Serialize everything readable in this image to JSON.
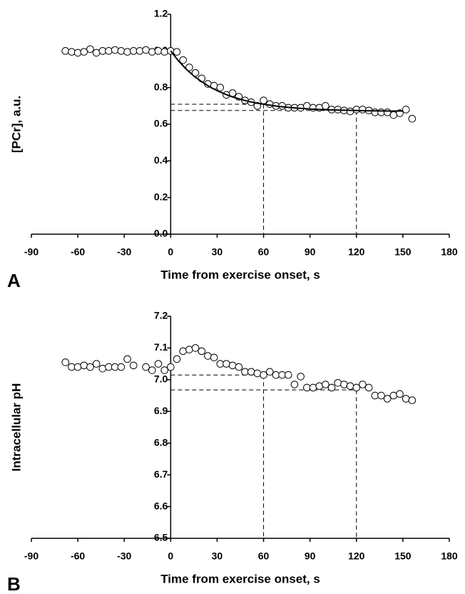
{
  "chart_data": [
    {
      "type": "scatter",
      "panel_label": "A",
      "x_label": "Time from exercise onset, s",
      "y_label": "[PCr], a.u.",
      "xlim": [
        -90,
        180
      ],
      "xticks": [
        -90,
        -60,
        -30,
        0,
        30,
        60,
        90,
        120,
        150,
        180
      ],
      "ylim": [
        0,
        1.2
      ],
      "yticks": [
        {
          "value": 0,
          "label": "0.0"
        },
        0.2,
        0.4,
        0.6,
        0.8,
        {
          "value": 1,
          "label": "1.0"
        },
        1.2
      ],
      "series": [
        {
          "type": "scatter",
          "color": "#000000",
          "x": [
            -68,
            -64,
            -60,
            -56,
            -52,
            -48,
            -44,
            -40,
            -36,
            -32,
            -28,
            -24,
            -20,
            -16,
            -12,
            -8,
            -4,
            0,
            4,
            8,
            12,
            16,
            20,
            24,
            28,
            32,
            36,
            40,
            44,
            48,
            52,
            56,
            60,
            64,
            68,
            72,
            76,
            80,
            84,
            88,
            92,
            96,
            100,
            104,
            108,
            112,
            116,
            120,
            124,
            128,
            132,
            136,
            140,
            144,
            148,
            152,
            156
          ],
          "values": [
            1.0,
            0.995,
            0.99,
            0.995,
            1.01,
            0.99,
            1.0,
            1.0,
            1.005,
            1.0,
            0.995,
            1.0,
            1.0,
            1.005,
            0.995,
            1.0,
            0.995,
            1.0,
            0.995,
            0.95,
            0.91,
            0.88,
            0.85,
            0.82,
            0.81,
            0.8,
            0.76,
            0.77,
            0.75,
            0.73,
            0.72,
            0.7,
            0.73,
            0.71,
            0.7,
            0.7,
            0.69,
            0.69,
            0.69,
            0.7,
            0.69,
            0.69,
            0.7,
            0.68,
            0.68,
            0.675,
            0.67,
            0.68,
            0.68,
            0.675,
            0.665,
            0.665,
            0.665,
            0.65,
            0.66,
            0.68,
            0.63
          ]
        },
        {
          "type": "line",
          "color": "#000000",
          "x": [
            0,
            5,
            10,
            15,
            20,
            25,
            30,
            35,
            40,
            45,
            50,
            55,
            60,
            70,
            80,
            90,
            100,
            110,
            120,
            130,
            140,
            150
          ],
          "values": [
            1.0,
            0.946,
            0.901,
            0.863,
            0.832,
            0.805,
            0.783,
            0.765,
            0.749,
            0.736,
            0.725,
            0.716,
            0.709,
            0.697,
            0.689,
            0.683,
            0.679,
            0.677,
            0.675,
            0.673,
            0.672,
            0.672
          ]
        }
      ],
      "reference_lines": [
        {
          "x": 60,
          "y": 0.709
        },
        {
          "x": 120,
          "y": 0.675
        }
      ]
    },
    {
      "type": "scatter",
      "panel_label": "B",
      "x_label": "Time from exercise onset, s",
      "y_label": "Intracellular pH",
      "xlim": [
        -90,
        180
      ],
      "xticks": [
        -90,
        -60,
        -30,
        0,
        30,
        60,
        90,
        120,
        150,
        180
      ],
      "ylim": [
        6.5,
        7.2
      ],
      "yticks": [
        6.5,
        6.6,
        6.7,
        6.8,
        6.9,
        {
          "value": 7,
          "label": "7.0"
        },
        7.1,
        7.2
      ],
      "series": [
        {
          "type": "scatter",
          "color": "#000000",
          "x": [
            -68,
            -64,
            -60,
            -56,
            -52,
            -48,
            -44,
            -40,
            -36,
            -32,
            -28,
            -24,
            -16,
            -12,
            -8,
            -4,
            0,
            4,
            8,
            12,
            16,
            20,
            24,
            28,
            32,
            36,
            40,
            44,
            48,
            52,
            56,
            60,
            64,
            68,
            72,
            76,
            80,
            84,
            88,
            92,
            96,
            100,
            104,
            108,
            112,
            116,
            120,
            124,
            128,
            132,
            136,
            140,
            144,
            148,
            152,
            156
          ],
          "values": [
            7.055,
            7.04,
            7.04,
            7.045,
            7.04,
            7.05,
            7.035,
            7.04,
            7.04,
            7.04,
            7.065,
            7.045,
            7.04,
            7.03,
            7.05,
            7.03,
            7.04,
            7.065,
            7.09,
            7.095,
            7.1,
            7.09,
            7.075,
            7.07,
            7.05,
            7.05,
            7.045,
            7.04,
            7.025,
            7.025,
            7.02,
            7.015,
            7.025,
            7.015,
            7.015,
            7.015,
            6.985,
            7.01,
            6.975,
            6.975,
            6.98,
            6.985,
            6.975,
            6.99,
            6.985,
            6.98,
            6.975,
            6.985,
            6.975,
            6.95,
            6.95,
            6.94,
            6.95,
            6.955,
            6.94,
            6.935
          ]
        }
      ],
      "reference_lines": [
        {
          "x": 60,
          "y": 7.015
        },
        {
          "x": 120,
          "y": 6.968
        }
      ]
    }
  ]
}
